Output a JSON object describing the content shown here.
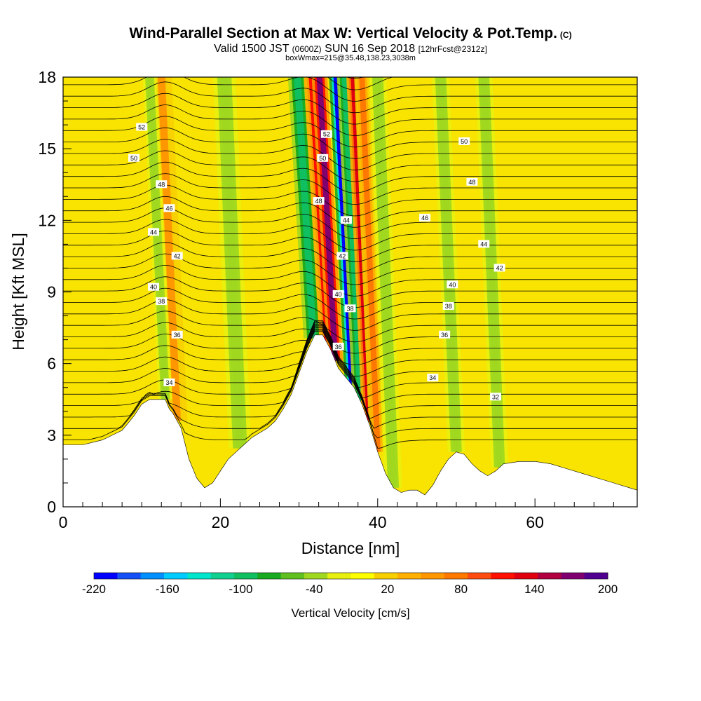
{
  "header": {
    "title": "Wind-Parallel Section at Max W: Vertical Velocity & Pot.Temp.",
    "copyright": "(C)",
    "valid_prefix": "Valid 1500 JST",
    "valid_utc": "(0600Z)",
    "valid_date": "SUN 16 Sep 2018",
    "forecast": "[12hrFcst@2312z]",
    "boxinfo": "boxWmax=215@35.48,138.23,3038m"
  },
  "chart_data": {
    "type": "heatmap",
    "xlabel": "Distance [nm]",
    "ylabel": "Height [Kft MSL]",
    "xlim": [
      0,
      73
    ],
    "ylim": [
      0,
      18
    ],
    "xticks": [
      0,
      20,
      40,
      60
    ],
    "yticks": [
      0,
      3,
      6,
      9,
      12,
      15,
      18
    ],
    "terrain": {
      "x": [
        0,
        2.5,
        5,
        7.5,
        9,
        10,
        11,
        12,
        13,
        13.5,
        14,
        15,
        16,
        17,
        18,
        19,
        20,
        21,
        22,
        23,
        24,
        25,
        26,
        27,
        28,
        29,
        30,
        31,
        32,
        33,
        34,
        35,
        36,
        37,
        38,
        39,
        40,
        41,
        42,
        43,
        44,
        45,
        46,
        47,
        48,
        49,
        50,
        51,
        52,
        53,
        54,
        55,
        56,
        58,
        60,
        62,
        64,
        66,
        68,
        70,
        72,
        73
      ],
      "y": [
        2.6,
        2.6,
        2.8,
        3.2,
        3.8,
        4.3,
        4.5,
        4.5,
        4.5,
        4.1,
        3.9,
        3.3,
        2.0,
        1.2,
        0.8,
        1.0,
        1.5,
        2.0,
        2.3,
        2.6,
        2.9,
        3.1,
        3.3,
        3.6,
        4.1,
        4.7,
        5.6,
        6.5,
        7.2,
        7.2,
        6.6,
        5.8,
        5.4,
        5.0,
        4.3,
        3.4,
        2.3,
        1.4,
        0.8,
        0.6,
        0.7,
        0.7,
        0.5,
        0.9,
        1.5,
        2.0,
        2.3,
        2.2,
        1.8,
        1.5,
        1.3,
        1.5,
        1.8,
        1.9,
        1.9,
        1.8,
        1.6,
        1.4,
        1.2,
        1.0,
        0.8,
        0.7
      ]
    },
    "vertical_velocity_features": [
      {
        "x": 14.5,
        "width": 1.2,
        "value": 60
      },
      {
        "x": 13.0,
        "width": 0.8,
        "value": -40
      },
      {
        "x": 22.5,
        "width": 1.3,
        "value": -40
      },
      {
        "x": 31.8,
        "width": 1.1,
        "value": -100
      },
      {
        "x": 33.6,
        "width": 0.9,
        "value": 120
      },
      {
        "x": 34.6,
        "width": 0.9,
        "value": 190
      },
      {
        "x": 36.7,
        "width": 0.8,
        "value": -210
      },
      {
        "x": 37.8,
        "width": 0.9,
        "value": -100
      },
      {
        "x": 38.9,
        "width": 0.8,
        "value": 150
      },
      {
        "x": 40.0,
        "width": 0.9,
        "value": 80
      },
      {
        "x": 42.0,
        "width": 1.0,
        "value": -40
      },
      {
        "x": 50.0,
        "width": 1.0,
        "value": -40
      },
      {
        "x": 55.5,
        "width": 1.0,
        "value": -40
      }
    ],
    "potential_temperature_labels": [
      "52",
      "50",
      "48",
      "46",
      "44",
      "42",
      "40",
      "38",
      "36",
      "34",
      "32"
    ],
    "colorbar": {
      "title": "Vertical Velocity [cm/s]",
      "tick_labels": [
        "-220",
        "-160",
        "-100",
        "-40",
        "20",
        "80",
        "140",
        "200"
      ],
      "colors": [
        "#0000ff",
        "#1450f5",
        "#0090ff",
        "#00ccff",
        "#00e6cc",
        "#10d090",
        "#10c060",
        "#18aa20",
        "#60c020",
        "#a0d820",
        "#e8f010",
        "#ffff00",
        "#f8d000",
        "#ffb000",
        "#ff9800",
        "#ff7800",
        "#ff4c10",
        "#ff1000",
        "#e00010",
        "#b00040",
        "#800070",
        "#500090"
      ]
    }
  }
}
